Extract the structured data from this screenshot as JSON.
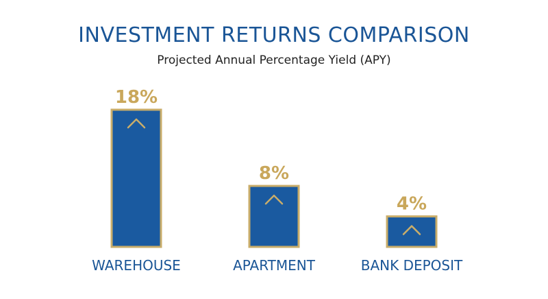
{
  "title": "INVESTMENT RETURNS COMPARISON",
  "subtitle": "Projected Annual Percentage Yield (APY)",
  "colors": {
    "bar_fill": "#1a5aa0",
    "bar_border": "#c9ad6a",
    "value_label": "#c9a75b",
    "category_label": "#1a5596",
    "chevron": "#c9ad6a"
  },
  "icons": {
    "bar_marker": "chevron-up-icon"
  },
  "chart_data": {
    "type": "bar",
    "title": "INVESTMENT RETURNS COMPARISON",
    "subtitle": "Projected Annual Percentage Yield (APY)",
    "categories": [
      "WAREHOUSE",
      "APARTMENT",
      "BANK DEPOSIT"
    ],
    "values": [
      18,
      8,
      4
    ],
    "value_labels": [
      "18%",
      "8%",
      "4%"
    ],
    "unit": "%",
    "ylim": [
      0,
      18
    ],
    "grid": false,
    "legend": "none"
  }
}
